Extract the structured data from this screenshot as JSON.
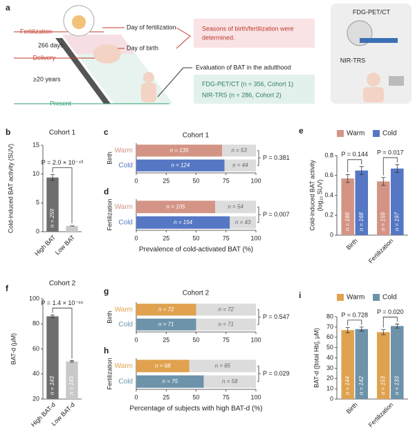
{
  "diagram": {
    "panel": "a",
    "fertilization": "Fertilization",
    "days": "266 days",
    "delivery": "Delivery",
    "years": "≥20 years",
    "present": "Present",
    "day_fertilization": "Day of fertilization",
    "day_birth": "Day of birth",
    "seasons": [
      "Seasons of birth/fertilization were",
      "determined."
    ],
    "evaluation": "Evaluation of BAT in the adulthood",
    "cohorts": [
      "FDG-PET/CT (n = 356, Cohort 1)",
      "NIR-TRS (n = 286, Cohort 2)"
    ],
    "device1": "FDG-PET/CT",
    "device2": "NIR-TRS"
  },
  "chart_data": [
    {
      "panel": "b",
      "type": "bar",
      "title": "Cohort 1",
      "ylabel": [
        "Cold-induced BAT activity (SUV)"
      ],
      "categories": [
        "High BAT",
        "Low BAT"
      ],
      "series": [
        {
          "colors": [
            "#6e6e6e",
            "#c9c9c9"
          ],
          "values": [
            9.4,
            1.0
          ],
          "errors": [
            0.5,
            0.1
          ],
          "count_labels": [
            "n = 259",
            "n = 97"
          ]
        }
      ],
      "ylim": [
        0,
        15
      ],
      "yticks": [
        0,
        5,
        10,
        15
      ],
      "annotation": "P = 2.0 × 10⁻⁴³"
    },
    {
      "panel": "c",
      "type": "barh_stacked",
      "title": "Cohort 1",
      "group_label": "Birth",
      "categories": [
        "Warm",
        "Cold"
      ],
      "series": [
        {
          "colors": [
            "#d39486",
            "#5577c4"
          ],
          "values": [
            71.8,
            73.8
          ],
          "count_labels": [
            "n = 135",
            "n = 124"
          ]
        },
        {
          "color": "#dcdcdc",
          "values": [
            28.2,
            26.2
          ],
          "count_labels": [
            "n = 53",
            "n = 44"
          ]
        }
      ],
      "xlim": [
        0,
        100
      ],
      "xticks": [
        0,
        25,
        50,
        75,
        100
      ],
      "annotation": "P = 0.381"
    },
    {
      "panel": "d",
      "type": "barh_stacked",
      "group_label": "Fertilization",
      "xlabel": "Prevalence of cold-activated BAT (%)",
      "categories": [
        "Warm",
        "Cold"
      ],
      "series": [
        {
          "colors": [
            "#d39486",
            "#5577c4"
          ],
          "values": [
            66.0,
            78.2
          ],
          "count_labels": [
            "n = 105",
            "n = 154"
          ]
        },
        {
          "color": "#dcdcdc",
          "values": [
            34.0,
            21.8
          ],
          "count_labels": [
            "n = 54",
            "n = 43"
          ]
        }
      ],
      "xlim": [
        0,
        100
      ],
      "xticks": [
        0,
        25,
        50,
        75,
        100
      ],
      "annotation": "P = 0.007"
    },
    {
      "panel": "e",
      "type": "bar",
      "ylabel": [
        "Cold-induced BAT activity",
        "(log₁₀ SUV)"
      ],
      "categories": [
        "Birth",
        "Fertilization"
      ],
      "series": [
        {
          "name": "Warm",
          "color": "#d39486",
          "values": [
            0.57,
            0.54
          ],
          "errors": [
            0.04,
            0.04
          ],
          "count_labels": [
            "n = 188",
            "n = 159"
          ]
        },
        {
          "name": "Cold",
          "color": "#5577c4",
          "values": [
            0.65,
            0.67
          ],
          "errors": [
            0.04,
            0.04
          ],
          "count_labels": [
            "n = 168",
            "n = 197"
          ]
        }
      ],
      "ylim": [
        0,
        0.8
      ],
      "yticks": [
        0,
        0.2,
        0.4,
        0.6,
        0.8
      ],
      "annotations": [
        "P = 0.144",
        "P = 0.017"
      ]
    },
    {
      "panel": "f",
      "type": "bar",
      "title": "Cohort 2",
      "ylabel": [
        "BAT-d (μM)"
      ],
      "categories": [
        "High BAT-d",
        "Low BAT-d"
      ],
      "series": [
        {
          "colors": [
            "#6e6e6e",
            "#c9c9c9"
          ],
          "values": [
            86,
            50
          ],
          "errors": [
            1,
            0.6
          ],
          "count_labels": [
            "n = 143",
            "n = 143"
          ]
        }
      ],
      "ylim": [
        20,
        100
      ],
      "yticks": [
        20,
        40,
        60,
        80,
        100
      ],
      "annotation": "P = 1.4 × 10⁻⁶⁶"
    },
    {
      "panel": "g",
      "type": "barh_stacked",
      "title": "Cohort 2",
      "group_label": "Birth",
      "categories": [
        "Warm",
        "Cold"
      ],
      "series": [
        {
          "colors": [
            "#e0a24f",
            "#6d93aa"
          ],
          "values": [
            50,
            50
          ],
          "count_labels": [
            "n = 72",
            "n = 71"
          ]
        },
        {
          "color": "#dcdcdc",
          "values": [
            50,
            50
          ],
          "count_labels": [
            "n = 72",
            "n = 71"
          ]
        }
      ],
      "xlim": [
        0,
        100
      ],
      "xticks": [
        0,
        25,
        50,
        75,
        100
      ],
      "annotation": "P = 0.547"
    },
    {
      "panel": "h",
      "type": "barh_stacked",
      "group_label": "Fertilization",
      "xlabel": "Percentage of subjects with high BAT-d (%)",
      "categories": [
        "Warm",
        "Cold"
      ],
      "series": [
        {
          "colors": [
            "#e0a24f",
            "#6d93aa"
          ],
          "values": [
            44.4,
            56.4
          ],
          "count_labels": [
            "n = 68",
            "n = 75"
          ]
        },
        {
          "color": "#dcdcdc",
          "values": [
            55.6,
            43.6
          ],
          "count_labels": [
            "n = 85",
            "n = 58"
          ]
        }
      ],
      "xlim": [
        0,
        100
      ],
      "xticks": [
        0,
        25,
        50,
        75,
        100
      ],
      "annotation": "P = 0.029"
    },
    {
      "panel": "i",
      "type": "bar",
      "ylabel": [
        "BAT-d ([total Hb], μM)"
      ],
      "categories": [
        "Birth",
        "Fertilization"
      ],
      "series": [
        {
          "name": "Warm",
          "color": "#e0a24f",
          "values": [
            67,
            65
          ],
          "errors": [
            2.5,
            2.5
          ],
          "count_labels": [
            "n = 144",
            "n = 153"
          ]
        },
        {
          "name": "Cold",
          "color": "#6d93aa",
          "values": [
            68,
            71
          ],
          "errors": [
            2,
            2
          ],
          "count_labels": [
            "n = 142",
            "n = 133"
          ]
        }
      ],
      "ylim": [
        0,
        80
      ],
      "yticks": [
        0,
        10,
        20,
        30,
        40,
        50,
        60,
        70,
        80
      ],
      "annotations": [
        "P = 0.728",
        "P = 0.020"
      ]
    }
  ]
}
